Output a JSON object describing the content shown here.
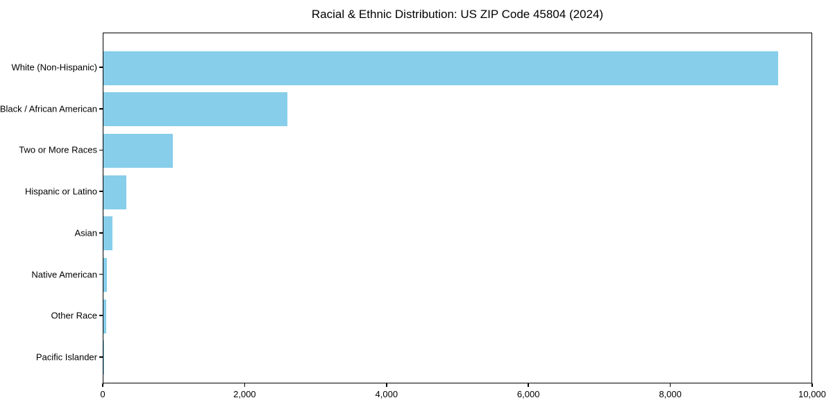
{
  "chart_data": {
    "type": "bar",
    "orientation": "horizontal",
    "title": "Racial & Ethnic Distribution: US ZIP Code 45804 (2024)",
    "categories": [
      "White (Non-Hispanic)",
      "Black / African American",
      "Two or More Races",
      "Hispanic or Latino",
      "Asian",
      "Native American",
      "Other Race",
      "Pacific Islander"
    ],
    "values": [
      9510,
      2590,
      980,
      320,
      125,
      50,
      35,
      5
    ],
    "xlabel": "",
    "ylabel": "",
    "xlim": [
      0,
      10000
    ],
    "x_ticks": [
      0,
      2000,
      4000,
      6000,
      8000,
      10000
    ],
    "x_tick_labels": [
      "0",
      "2,000",
      "4,000",
      "6,000",
      "8,000",
      "10,000"
    ],
    "bar_color": "#87CEEB",
    "background_color": "#ffffff",
    "spine_color": "#000000",
    "grid": false,
    "legend": null
  }
}
